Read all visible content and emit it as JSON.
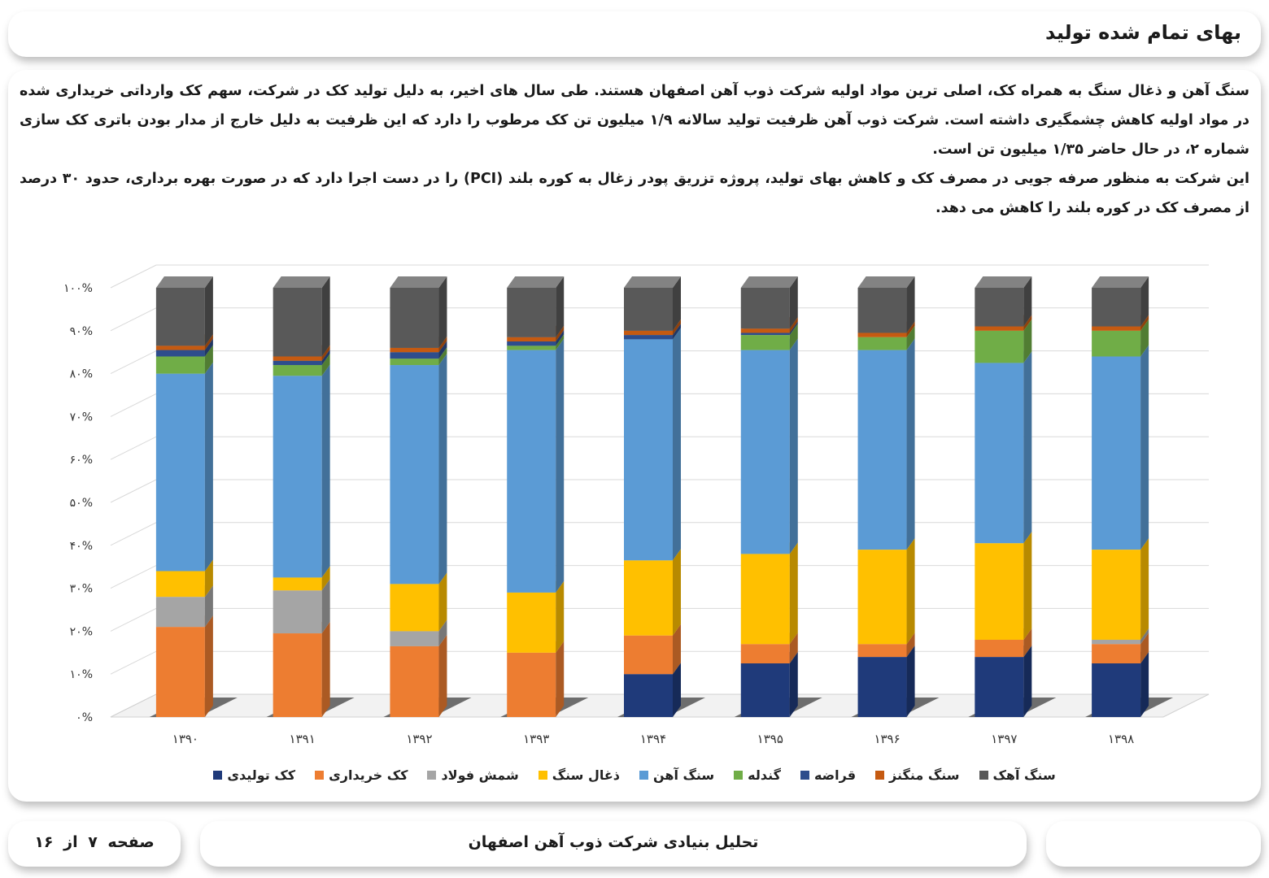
{
  "header": {
    "title": "بهای تمام شده تولید"
  },
  "body": {
    "paragraph1": "سنگ آهن و ذغال سنگ به همراه کک، اصلی ترین مواد اولیه شرکت ذوب آهن اصفهان هستند. طی سال های اخیر، به دلیل تولید کک در شرکت، سهم کک وارداتی خریداری شده در مواد اولیه کاهش چشمگیری داشته است. شرکت ذوب آهن ظرفیت تولید سالانه ۱/۹ میلیون تن کک مرطوب را دارد که این ظرفیت به دلیل خارج از مدار بودن باتری کک سازی شماره ۲، در حال حاضر ۱/۳۵ میلیون تن است.",
    "paragraph2": "این شرکت به منظور صرفه جویی در مصرف کک و کاهش بهای تولید، پروژه تزریق پودر زغال به کوره بلند (PCI) را در دست اجرا دارد که در صورت بهره برداری، حدود ۳۰ درصد از مصرف کک در کوره بلند را کاهش می دهد."
  },
  "chart_data": {
    "type": "bar",
    "stacked": true,
    "percent": true,
    "categories": [
      "۱۳۹۰",
      "۱۳۹۱",
      "۱۳۹۲",
      "۱۳۹۳",
      "۱۳۹۴",
      "۱۳۹۵",
      "۱۳۹۶",
      "۱۳۹۷",
      "۱۳۹۸"
    ],
    "y_ticks": [
      "۰%",
      "۱۰%",
      "۲۰%",
      "۳۰%",
      "۴۰%",
      "۵۰%",
      "۶۰%",
      "۷۰%",
      "۸۰%",
      "۹۰%",
      "۱۰۰%"
    ],
    "ylim": [
      0,
      100
    ],
    "grid": true,
    "legend_position": "bottom",
    "series": [
      {
        "name": "کک تولیدی",
        "color": "#1f3a7a",
        "values": [
          0,
          0,
          0,
          0,
          10,
          12.5,
          14,
          14,
          12.5
        ]
      },
      {
        "name": "کک خریداری",
        "color": "#ed7d31",
        "values": [
          21,
          19.5,
          16.5,
          15,
          9,
          4.5,
          3,
          4,
          4.5
        ]
      },
      {
        "name": "شمش فولاد",
        "color": "#a5a5a5",
        "values": [
          7,
          10,
          3.5,
          0,
          0,
          0,
          0,
          0,
          1
        ]
      },
      {
        "name": "ذغال سنگ",
        "color": "#ffc000",
        "values": [
          6,
          3,
          11,
          14,
          17.5,
          21,
          22,
          22.5,
          21
        ]
      },
      {
        "name": "سنگ آهن",
        "color": "#5b9bd5",
        "values": [
          46,
          47,
          51,
          56.5,
          51.5,
          47.5,
          46.5,
          42,
          45
        ]
      },
      {
        "name": "گندله",
        "color": "#70ad47",
        "values": [
          4,
          2.5,
          1.5,
          1,
          0,
          3.5,
          3,
          7.5,
          6
        ]
      },
      {
        "name": "قراضه",
        "color": "#2e4d8c",
        "values": [
          1.5,
          1,
          1.5,
          1,
          1,
          0.5,
          0,
          0,
          0
        ]
      },
      {
        "name": "سنگ منگنز",
        "color": "#c55a11",
        "values": [
          1,
          1,
          1,
          1,
          1,
          1,
          1,
          1,
          1
        ]
      },
      {
        "name": "سنگ آهک",
        "color": "#595959",
        "values": [
          13.5,
          16,
          14,
          11.5,
          10,
          9.5,
          10.5,
          9,
          9
        ]
      }
    ]
  },
  "footer": {
    "title": "تحلیل بنیادی شرکت ذوب آهن اصفهان",
    "page": "صفحه ۷ از ۱۶"
  }
}
